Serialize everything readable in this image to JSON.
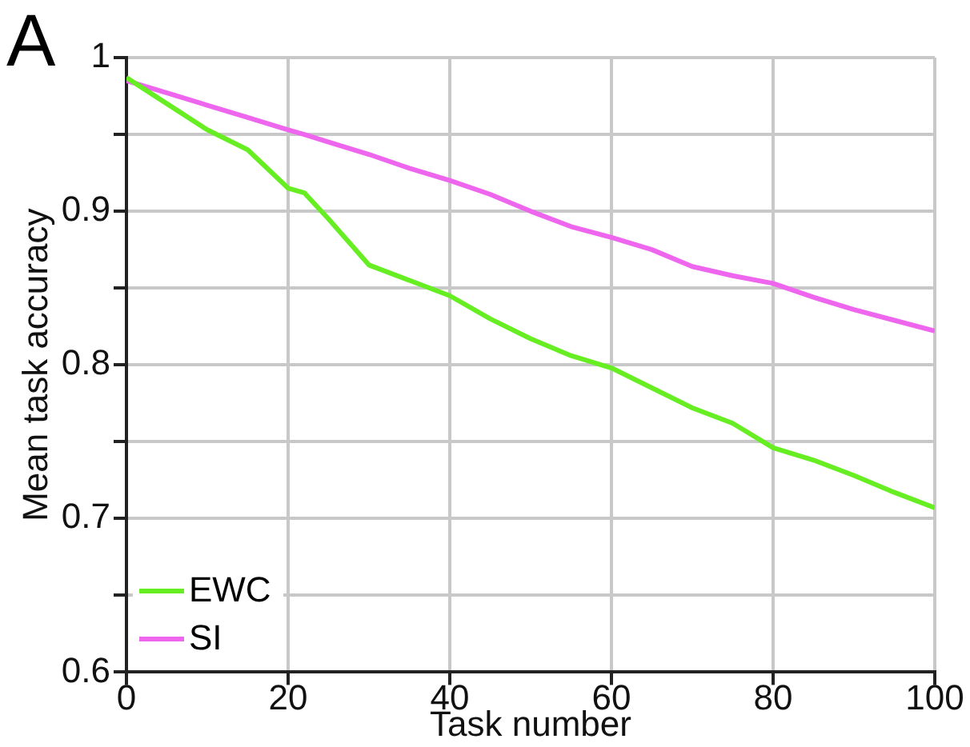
{
  "chart_data": {
    "type": "line",
    "xlabel": "Task number",
    "ylabel": "Mean task accuracy",
    "annotations": [
      "A"
    ],
    "x": [
      0,
      5,
      10,
      15,
      20,
      22,
      25,
      30,
      35,
      40,
      45,
      50,
      55,
      60,
      65,
      70,
      75,
      80,
      85,
      90,
      95,
      100
    ],
    "series": [
      {
        "name": "EWC",
        "color": "#66ee22",
        "values": [
          0.987,
          0.97,
          0.953,
          0.94,
          0.915,
          0.912,
          0.895,
          0.865,
          0.855,
          0.845,
          0.83,
          0.817,
          0.806,
          0.798,
          0.785,
          0.772,
          0.762,
          0.746,
          0.738,
          0.728,
          0.717,
          0.707
        ]
      },
      {
        "name": "SI",
        "color": "#ee66ee",
        "values": [
          0.985,
          0.977,
          0.969,
          0.961,
          0.953,
          0.95,
          0.945,
          0.937,
          0.928,
          0.92,
          0.911,
          0.9,
          0.89,
          0.883,
          0.875,
          0.864,
          0.858,
          0.853,
          0.844,
          0.836,
          0.829,
          0.822
        ]
      }
    ],
    "xlim": [
      0,
      100
    ],
    "xticks": [
      0,
      20,
      40,
      60,
      80,
      100
    ],
    "ylim": [
      0.6,
      1
    ],
    "yticks": [
      0.6,
      {
        "value": 0.65,
        "label": null
      },
      0.7,
      {
        "value": 0.75,
        "label": null
      },
      0.8,
      {
        "value": 0.85,
        "label": null
      },
      0.9,
      {
        "value": 0.95,
        "label": null
      },
      1
    ],
    "grid": true,
    "legend": "bottom left",
    "marker": "none",
    "line_style": "solid"
  }
}
